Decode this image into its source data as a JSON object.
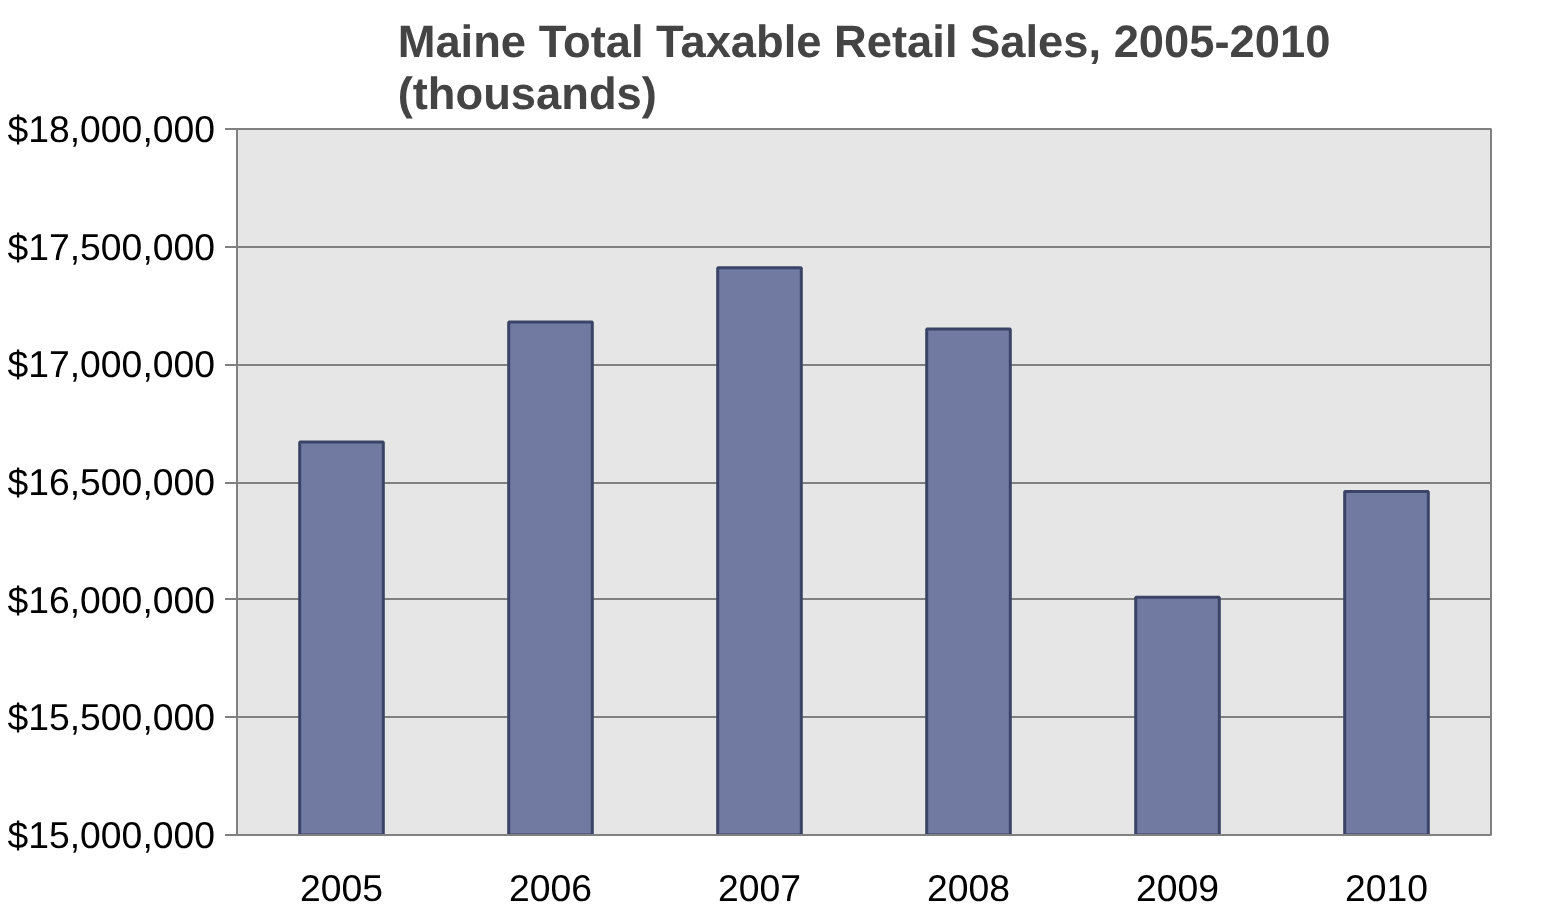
{
  "chart_data": {
    "type": "bar",
    "title": "Maine Total Taxable Retail Sales, 2005-2010\n(thousands)",
    "categories": [
      "2005",
      "2006",
      "2007",
      "2008",
      "2009",
      "2010"
    ],
    "values": [
      16670000,
      17180000,
      17410000,
      17150000,
      16010000,
      16460000
    ],
    "color": "#717aa0",
    "ylim": [
      15000000,
      18000000
    ],
    "yticks": [
      {
        "value": 15000000,
        "label": "$15,000,000"
      },
      {
        "value": 15500000,
        "label": "$15,500,000"
      },
      {
        "value": 16000000,
        "label": "$16,000,000"
      },
      {
        "value": 16500000,
        "label": "$16,500,000"
      },
      {
        "value": 17000000,
        "label": "$17,000,000"
      },
      {
        "value": 17500000,
        "label": "$17,500,000"
      },
      {
        "value": 18000000,
        "label": "$18,000,000"
      }
    ],
    "grid": "y"
  }
}
